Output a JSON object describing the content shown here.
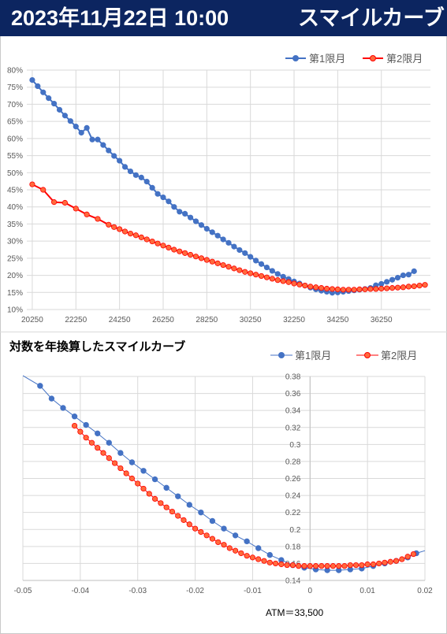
{
  "header": {
    "datetime": "2023年11月22日 10:00",
    "title": "スマイルカーブ"
  },
  "colors": {
    "header_bg": "#0c2560",
    "series1": "#4472c4",
    "series2": "#ff0000",
    "series2_marker_fill": "#ff6a3d",
    "grid": "#d9d9d9"
  },
  "chart_data": [
    {
      "type": "line",
      "title": "",
      "legend_position": "top-right",
      "grid": true,
      "xlim": [
        20000,
        38500
      ],
      "ylim": [
        0.1,
        0.8
      ],
      "x_ticks": [
        20250,
        22250,
        24250,
        26250,
        28250,
        30250,
        32250,
        34250,
        36250
      ],
      "y_ticks": [
        "10%",
        "15%",
        "20%",
        "25%",
        "30%",
        "35%",
        "40%",
        "45%",
        "50%",
        "55%",
        "60%",
        "65%",
        "70%",
        "75%",
        "80%"
      ],
      "series": [
        {
          "name": "第1限月",
          "points": [
            [
              20250,
              0.771
            ],
            [
              20500,
              0.753
            ],
            [
              20750,
              0.735
            ],
            [
              21000,
              0.718
            ],
            [
              21250,
              0.702
            ],
            [
              21500,
              0.684
            ],
            [
              21750,
              0.667
            ],
            [
              22000,
              0.651
            ],
            [
              22250,
              0.635
            ],
            [
              22500,
              0.617
            ],
            [
              22750,
              0.631
            ],
            [
              23000,
              0.597
            ],
            [
              23250,
              0.597
            ],
            [
              23500,
              0.581
            ],
            [
              23750,
              0.565
            ],
            [
              24000,
              0.549
            ],
            [
              24250,
              0.535
            ],
            [
              24500,
              0.517
            ],
            [
              24750,
              0.504
            ],
            [
              25000,
              0.493
            ],
            [
              25250,
              0.486
            ],
            [
              25500,
              0.474
            ],
            [
              25750,
              0.456
            ],
            [
              26000,
              0.438
            ],
            [
              26250,
              0.428
            ],
            [
              26500,
              0.416
            ],
            [
              26750,
              0.4
            ],
            [
              27000,
              0.386
            ],
            [
              27250,
              0.38
            ],
            [
              27500,
              0.369
            ],
            [
              27750,
              0.358
            ],
            [
              28000,
              0.347
            ],
            [
              28250,
              0.336
            ],
            [
              28500,
              0.326
            ],
            [
              28750,
              0.316
            ],
            [
              29000,
              0.305
            ],
            [
              29250,
              0.295
            ],
            [
              29500,
              0.284
            ],
            [
              29750,
              0.274
            ],
            [
              30000,
              0.265
            ],
            [
              30250,
              0.254
            ],
            [
              30500,
              0.243
            ],
            [
              30750,
              0.233
            ],
            [
              31000,
              0.223
            ],
            [
              31250,
              0.213
            ],
            [
              31500,
              0.204
            ],
            [
              31750,
              0.196
            ],
            [
              32000,
              0.189
            ],
            [
              32250,
              0.182
            ],
            [
              32500,
              0.176
            ],
            [
              32750,
              0.17
            ],
            [
              33000,
              0.164
            ],
            [
              33250,
              0.159
            ],
            [
              33500,
              0.155
            ],
            [
              33750,
              0.152
            ],
            [
              34000,
              0.149
            ],
            [
              34250,
              0.15
            ],
            [
              34500,
              0.152
            ],
            [
              34750,
              0.154
            ],
            [
              35000,
              0.156
            ],
            [
              35250,
              0.158
            ],
            [
              35500,
              0.16
            ],
            [
              35750,
              0.163
            ],
            [
              36000,
              0.171
            ],
            [
              36250,
              0.175
            ],
            [
              36500,
              0.181
            ],
            [
              36750,
              0.187
            ],
            [
              37000,
              0.193
            ],
            [
              37250,
              0.2
            ],
            [
              37500,
              0.202
            ],
            [
              37750,
              0.212
            ]
          ]
        },
        {
          "name": "第2限月",
          "points": [
            [
              20250,
              0.466
            ],
            [
              20750,
              0.45
            ],
            [
              21250,
              0.414
            ],
            [
              21750,
              0.412
            ],
            [
              22250,
              0.395
            ],
            [
              22750,
              0.378
            ],
            [
              23250,
              0.365
            ],
            [
              23750,
              0.348
            ],
            [
              24000,
              0.341
            ],
            [
              24250,
              0.335
            ],
            [
              24500,
              0.328
            ],
            [
              24750,
              0.322
            ],
            [
              25000,
              0.317
            ],
            [
              25250,
              0.311
            ],
            [
              25500,
              0.305
            ],
            [
              25750,
              0.299
            ],
            [
              26000,
              0.293
            ],
            [
              26250,
              0.287
            ],
            [
              26500,
              0.281
            ],
            [
              26750,
              0.275
            ],
            [
              27000,
              0.27
            ],
            [
              27250,
              0.265
            ],
            [
              27500,
              0.26
            ],
            [
              27750,
              0.255
            ],
            [
              28000,
              0.25
            ],
            [
              28250,
              0.245
            ],
            [
              28500,
              0.24
            ],
            [
              28750,
              0.235
            ],
            [
              29000,
              0.23
            ],
            [
              29250,
              0.225
            ],
            [
              29500,
              0.22
            ],
            [
              29750,
              0.215
            ],
            [
              30000,
              0.21
            ],
            [
              30250,
              0.206
            ],
            [
              30500,
              0.202
            ],
            [
              30750,
              0.198
            ],
            [
              31000,
              0.194
            ],
            [
              31250,
              0.19
            ],
            [
              31500,
              0.186
            ],
            [
              31750,
              0.183
            ],
            [
              32000,
              0.18
            ],
            [
              32250,
              0.176
            ],
            [
              32500,
              0.173
            ],
            [
              32750,
              0.17
            ],
            [
              33000,
              0.167
            ],
            [
              33250,
              0.165
            ],
            [
              33500,
              0.163
            ],
            [
              33750,
              0.161
            ],
            [
              34000,
              0.16
            ],
            [
              34250,
              0.159
            ],
            [
              34500,
              0.158
            ],
            [
              34750,
              0.158
            ],
            [
              35000,
              0.158
            ],
            [
              35250,
              0.159
            ],
            [
              35500,
              0.159
            ],
            [
              35750,
              0.16
            ],
            [
              36000,
              0.16
            ],
            [
              36250,
              0.161
            ],
            [
              36500,
              0.162
            ],
            [
              36750,
              0.163
            ],
            [
              37000,
              0.164
            ],
            [
              37250,
              0.165
            ],
            [
              37500,
              0.167
            ],
            [
              37750,
              0.168
            ],
            [
              38000,
              0.17
            ],
            [
              38250,
              0.172
            ]
          ]
        }
      ]
    },
    {
      "type": "scatter",
      "title": "対数を年換算したスマイルカーブ",
      "annotation": "ATM＝33,500",
      "legend_position": "top-right",
      "grid": true,
      "xlim": [
        -0.05,
        0.02
      ],
      "ylim": [
        0.14,
        0.38
      ],
      "x_ticks": [
        "-0.05",
        "-0.04",
        "-0.03",
        "-0.02",
        "-0.01",
        "0",
        "0.01",
        "0.02"
      ],
      "y_ticks": [
        "0.14",
        "0.16",
        "0.18",
        "0.2",
        "0.22",
        "0.24",
        "0.26",
        "0.28",
        "0.3",
        "0.32",
        "0.34",
        "0.36",
        "0.38"
      ],
      "series": [
        {
          "name": "第1限月",
          "points": [
            [
              -0.047,
              0.369
            ],
            [
              -0.045,
              0.354
            ],
            [
              -0.043,
              0.343
            ],
            [
              -0.041,
              0.333
            ],
            [
              -0.039,
              0.323
            ],
            [
              -0.037,
              0.313
            ],
            [
              -0.035,
              0.302
            ],
            [
              -0.033,
              0.29
            ],
            [
              -0.031,
              0.279
            ],
            [
              -0.029,
              0.269
            ],
            [
              -0.027,
              0.259
            ],
            [
              -0.025,
              0.249
            ],
            [
              -0.023,
              0.239
            ],
            [
              -0.021,
              0.229
            ],
            [
              -0.019,
              0.22
            ],
            [
              -0.017,
              0.21
            ],
            [
              -0.015,
              0.201
            ],
            [
              -0.013,
              0.193
            ],
            [
              -0.011,
              0.186
            ],
            [
              -0.009,
              0.178
            ],
            [
              -0.007,
              0.17
            ],
            [
              -0.005,
              0.164
            ],
            [
              -0.003,
              0.158
            ],
            [
              -0.001,
              0.155
            ],
            [
              0.001,
              0.153
            ],
            [
              0.003,
              0.152
            ],
            [
              0.005,
              0.152
            ],
            [
              0.007,
              0.153
            ],
            [
              0.009,
              0.154
            ],
            [
              0.011,
              0.157
            ],
            [
              0.013,
              0.16
            ],
            [
              0.015,
              0.163
            ],
            [
              0.017,
              0.167
            ],
            [
              0.0185,
              0.172
            ]
          ]
        },
        {
          "name": "第2限月",
          "points": [
            [
              -0.041,
              0.322
            ],
            [
              -0.04,
              0.315
            ],
            [
              -0.039,
              0.308
            ],
            [
              -0.038,
              0.302
            ],
            [
              -0.037,
              0.296
            ],
            [
              -0.036,
              0.29
            ],
            [
              -0.035,
              0.284
            ],
            [
              -0.034,
              0.278
            ],
            [
              -0.033,
              0.272
            ],
            [
              -0.032,
              0.266
            ],
            [
              -0.031,
              0.26
            ],
            [
              -0.03,
              0.254
            ],
            [
              -0.029,
              0.248
            ],
            [
              -0.028,
              0.242
            ],
            [
              -0.027,
              0.236
            ],
            [
              -0.026,
              0.231
            ],
            [
              -0.025,
              0.226
            ],
            [
              -0.024,
              0.221
            ],
            [
              -0.023,
              0.216
            ],
            [
              -0.022,
              0.211
            ],
            [
              -0.021,
              0.206
            ],
            [
              -0.02,
              0.201
            ],
            [
              -0.019,
              0.197
            ],
            [
              -0.018,
              0.193
            ],
            [
              -0.017,
              0.189
            ],
            [
              -0.016,
              0.185
            ],
            [
              -0.015,
              0.182
            ],
            [
              -0.014,
              0.178
            ],
            [
              -0.013,
              0.175
            ],
            [
              -0.012,
              0.172
            ],
            [
              -0.011,
              0.169
            ],
            [
              -0.01,
              0.167
            ],
            [
              -0.009,
              0.165
            ],
            [
              -0.008,
              0.163
            ],
            [
              -0.007,
              0.161
            ],
            [
              -0.006,
              0.16
            ],
            [
              -0.005,
              0.159
            ],
            [
              -0.004,
              0.158
            ],
            [
              -0.003,
              0.158
            ],
            [
              -0.002,
              0.157
            ],
            [
              -0.001,
              0.157
            ],
            [
              0.0,
              0.157
            ],
            [
              0.001,
              0.157
            ],
            [
              0.002,
              0.157
            ],
            [
              0.003,
              0.157
            ],
            [
              0.004,
              0.157
            ],
            [
              0.005,
              0.157
            ],
            [
              0.006,
              0.157
            ],
            [
              0.007,
              0.158
            ],
            [
              0.008,
              0.158
            ],
            [
              0.009,
              0.158
            ],
            [
              0.01,
              0.159
            ],
            [
              0.011,
              0.159
            ],
            [
              0.012,
              0.16
            ],
            [
              0.013,
              0.161
            ],
            [
              0.014,
              0.162
            ],
            [
              0.015,
              0.163
            ],
            [
              0.016,
              0.165
            ],
            [
              0.017,
              0.168
            ],
            [
              0.018,
              0.171
            ]
          ]
        }
      ]
    }
  ]
}
